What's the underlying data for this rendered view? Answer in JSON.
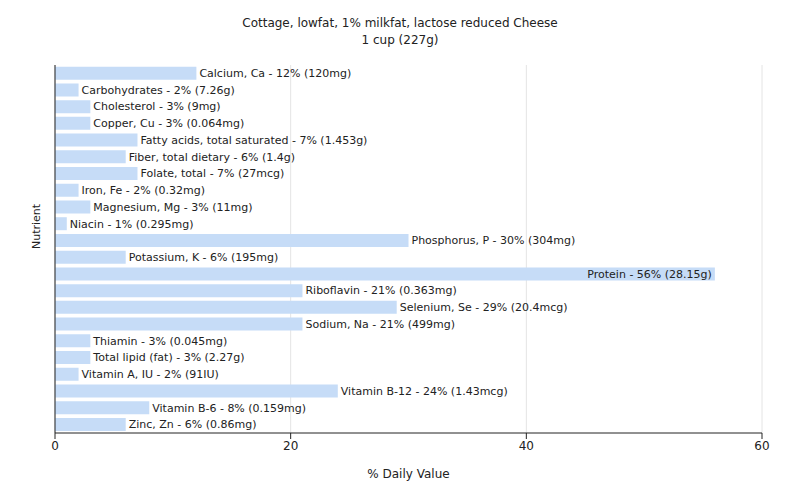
{
  "chart_data": {
    "type": "bar",
    "title": "Cottage, lowfat, 1% milkfat, lactose reduced Cheese",
    "subtitle": "1 cup (227g)",
    "orientation": "horizontal",
    "x_label": "% Daily Value",
    "y_label": "Nutrient",
    "categories": [
      "Calcium, Ca - 12% (120mg)",
      "Carbohydrates - 2% (7.26g)",
      "Cholesterol - 3% (9mg)",
      "Copper, Cu - 3% (0.064mg)",
      "Fatty acids, total saturated - 7% (1.453g)",
      "Fiber, total dietary - 6% (1.4g)",
      "Folate, total - 7% (27mcg)",
      "Iron, Fe - 2% (0.32mg)",
      "Magnesium, Mg - 3% (11mg)",
      "Niacin - 1% (0.295mg)",
      "Phosphorus, P - 30% (304mg)",
      "Potassium, K - 6% (195mg)",
      "Protein - 56% (28.15g)",
      "Riboflavin - 21% (0.363mg)",
      "Selenium, Se - 29% (20.4mcg)",
      "Sodium, Na - 21% (499mg)",
      "Thiamin - 3% (0.045mg)",
      "Total lipid (fat) - 3% (2.27g)",
      "Vitamin A, IU - 2% (91IU)",
      "Vitamin B-12 - 24% (1.43mcg)",
      "Vitamin B-6 - 8% (0.159mg)",
      "Zinc, Zn - 6% (0.86mg)"
    ],
    "values": [
      12,
      2,
      3,
      3,
      7,
      6,
      7,
      2,
      3,
      1,
      30,
      6,
      56,
      21,
      29,
      21,
      3,
      3,
      2,
      24,
      8,
      6
    ],
    "color": "#c6dcf7",
    "xlim": [
      0,
      60
    ],
    "xticks": [
      0,
      20,
      40,
      60
    ],
    "grid": true,
    "tick_labels": "x"
  }
}
